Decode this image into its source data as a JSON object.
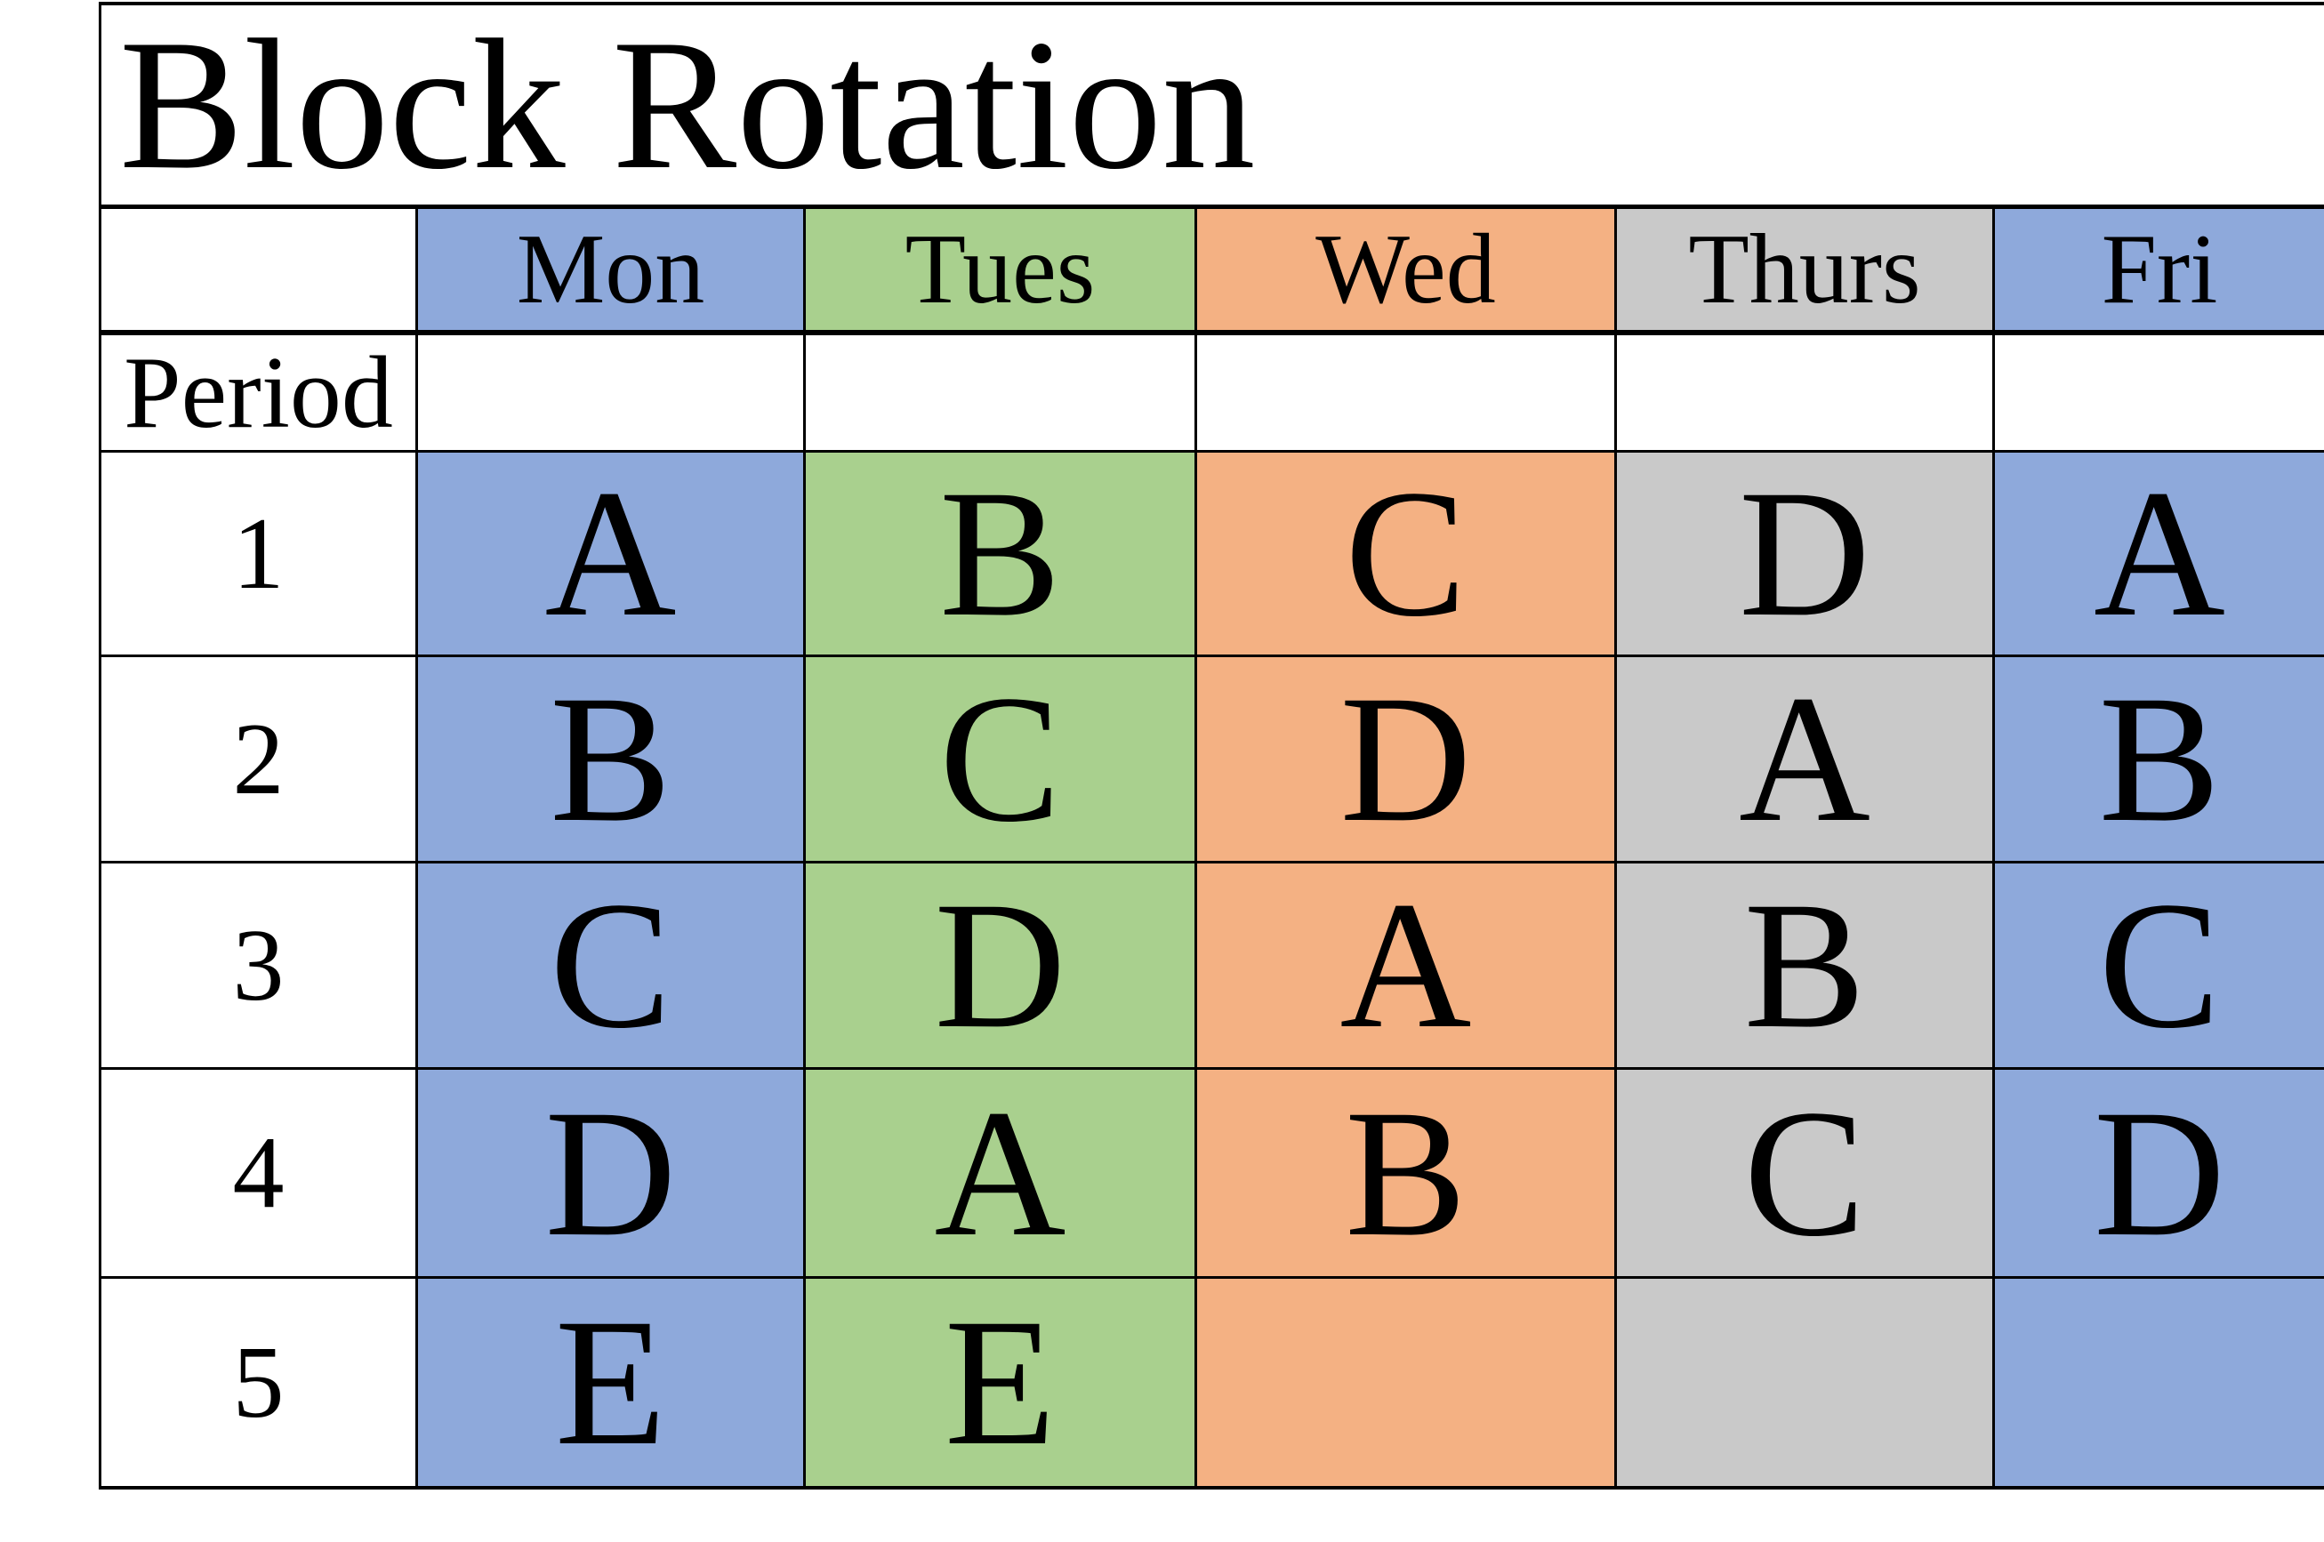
{
  "title": "Block Rotation",
  "period_label": "Period",
  "days": [
    "Mon",
    "Tues",
    "Wed",
    "Thurs",
    "Fri"
  ],
  "rows": [
    {
      "period": "1",
      "cells": [
        "A",
        "B",
        "C",
        "D",
        "A"
      ]
    },
    {
      "period": "2",
      "cells": [
        "B",
        "C",
        "D",
        "A",
        "B"
      ]
    },
    {
      "period": "3",
      "cells": [
        "C",
        "D",
        "A",
        "B",
        "C"
      ]
    },
    {
      "period": "4",
      "cells": [
        "D",
        "A",
        "B",
        "C",
        "D"
      ]
    },
    {
      "period": "5",
      "cells": [
        "E",
        "E",
        "",
        "",
        ""
      ]
    }
  ],
  "colors": {
    "mon": "#8EA9DB",
    "tues": "#A9D08E",
    "wed": "#F4B183",
    "thurs": "#C9C9C9",
    "fri": "#8EA9DB",
    "border": "#000000",
    "background": "#FFFFFF"
  }
}
